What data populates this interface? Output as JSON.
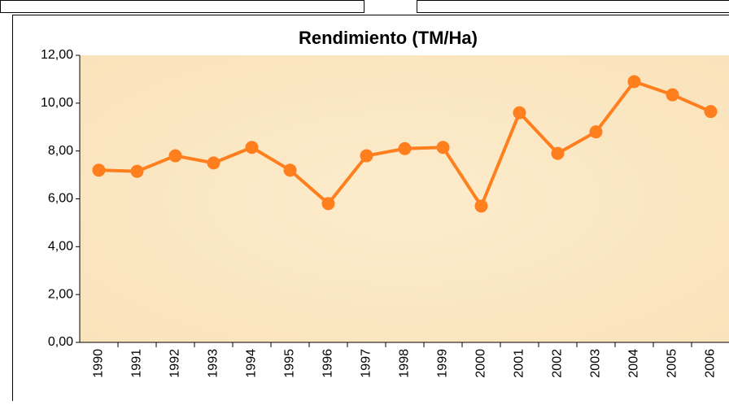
{
  "chart_data": {
    "type": "line",
    "title": "Rendimiento (TM/Ha)",
    "categories": [
      "1990",
      "1991",
      "1992",
      "1993",
      "1994",
      "1995",
      "1996",
      "1997",
      "1998",
      "1999",
      "2000",
      "2001",
      "2002",
      "2003",
      "2004",
      "2005",
      "2006"
    ],
    "series": [
      {
        "name": "Rendimiento",
        "color": "#ff7f1e",
        "values": [
          7.2,
          7.15,
          7.8,
          7.5,
          8.15,
          7.2,
          5.8,
          7.8,
          8.1,
          8.15,
          5.7,
          9.6,
          7.9,
          8.8,
          10.9,
          10.35,
          9.65
        ]
      }
    ],
    "ylim": [
      0,
      12
    ],
    "yticks": [
      {
        "value": 0,
        "label": "0,00"
      },
      {
        "value": 2,
        "label": "2,00"
      },
      {
        "value": 4,
        "label": "4,00"
      },
      {
        "value": 6,
        "label": "6,00"
      },
      {
        "value": 8,
        "label": "8,00"
      },
      {
        "value": 10,
        "label": "10,00"
      },
      {
        "value": 12,
        "label": "12,00"
      }
    ],
    "grid": false
  }
}
